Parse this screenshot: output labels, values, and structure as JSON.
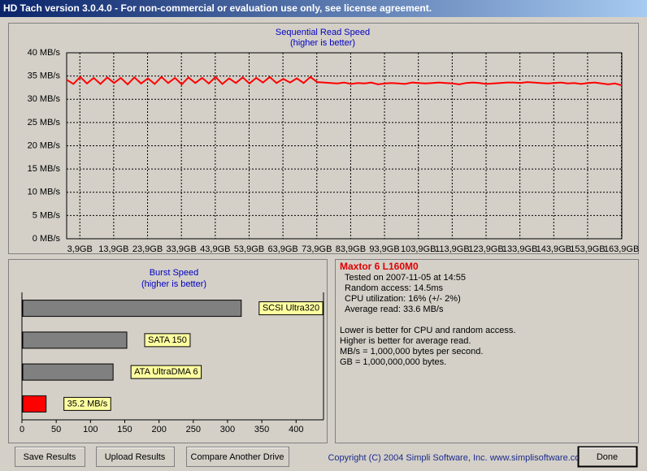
{
  "window": {
    "title": "HD Tach version 3.0.4.0  - For non-commercial or evaluation use only, see license agreement."
  },
  "charts": [
    {
      "type": "line",
      "title": "Sequential Read Speed",
      "subtitle": "(higher is better)",
      "x": [
        0,
        2,
        4,
        6,
        8,
        10,
        12,
        14,
        16,
        18,
        20,
        22,
        24,
        26,
        28,
        30,
        32,
        34,
        36,
        38,
        40,
        42,
        44,
        46,
        48,
        50,
        52,
        54,
        56,
        58,
        60,
        62,
        64,
        66,
        68,
        70,
        72,
        74,
        76,
        78,
        80,
        82,
        84,
        86,
        88,
        90,
        92,
        94,
        96,
        98,
        100,
        102,
        104,
        106,
        108,
        110,
        112,
        114,
        116,
        118,
        120,
        122,
        124,
        126,
        128,
        130,
        132,
        134,
        136,
        138,
        140,
        142,
        144,
        146,
        148,
        150,
        152,
        154,
        156,
        158,
        160,
        162,
        164
      ],
      "series": [
        {
          "color": "#ff0000",
          "values": [
            34.2,
            33.3,
            34.8,
            33.4,
            34.6,
            33.3,
            34.7,
            33.5,
            34.6,
            33.2,
            34.7,
            33.4,
            34.5,
            33.3,
            34.8,
            33.5,
            34.6,
            33.2,
            34.7,
            33.5,
            34.6,
            33.4,
            34.8,
            33.3,
            34.5,
            33.5,
            34.7,
            33.4,
            34.6,
            33.6,
            34.8,
            33.5,
            34.4,
            33.6,
            34.5,
            33.5,
            34.8,
            33.7,
            33.6,
            33.5,
            33.4,
            33.6,
            33.3,
            33.5,
            33.4,
            33.6,
            33.2,
            33.4,
            33.5,
            33.4,
            33.3,
            33.6,
            33.5,
            33.4,
            33.5,
            33.6,
            33.5,
            33.4,
            33.2,
            33.5,
            33.6,
            33.5,
            33.3,
            33.4,
            33.5,
            33.6,
            33.6,
            33.5,
            33.7,
            33.6,
            33.5,
            33.4,
            33.5,
            33.6,
            33.4,
            33.5,
            33.3,
            33.5,
            33.6,
            33.4,
            33.2,
            33.4,
            33.0
          ]
        }
      ],
      "xlim": [
        0,
        164
      ],
      "xticks": [
        {
          "value": 3.9,
          "label": "3,9GB"
        },
        {
          "value": 13.9,
          "label": "13,9GB"
        },
        {
          "value": 23.9,
          "label": "23,9GB"
        },
        {
          "value": 33.9,
          "label": "33,9GB"
        },
        {
          "value": 43.9,
          "label": "43,9GB"
        },
        {
          "value": 53.9,
          "label": "53,9GB"
        },
        {
          "value": 63.9,
          "label": "63,9GB"
        },
        {
          "value": 73.9,
          "label": "73,9GB"
        },
        {
          "value": 83.9,
          "label": "83,9GB"
        },
        {
          "value": 93.9,
          "label": "93,9GB"
        },
        {
          "value": 103.9,
          "label": "103,9GB"
        },
        {
          "value": 113.9,
          "label": "113,9GB"
        },
        {
          "value": 123.9,
          "label": "123,9GB"
        },
        {
          "value": 133.9,
          "label": "133,9GB"
        },
        {
          "value": 143.9,
          "label": "143,9GB"
        },
        {
          "value": 153.9,
          "label": "153,9GB"
        },
        {
          "value": 163.9,
          "label": "163,9GB"
        }
      ],
      "ylim": [
        0,
        40
      ],
      "yticks": [
        {
          "value": 0,
          "label": "0 MB/s"
        },
        {
          "value": 5,
          "label": "5 MB/s"
        },
        {
          "value": 10,
          "label": "10 MB/s"
        },
        {
          "value": 15,
          "label": "15 MB/s"
        },
        {
          "value": 20,
          "label": "20 MB/s"
        },
        {
          "value": 25,
          "label": "25 MB/s"
        },
        {
          "value": 30,
          "label": "30 MB/s"
        },
        {
          "value": 35,
          "label": "35 MB/s"
        },
        {
          "value": 40,
          "label": "40 MB/s"
        }
      ],
      "grid": true
    },
    {
      "type": "hbar",
      "title": "Burst Speed",
      "subtitle": "(higher is better)",
      "categories": [
        "SCSI Ultra320",
        "SATA 150",
        "ATA UltraDMA 6",
        null
      ],
      "values": [
        320,
        153,
        133,
        35.2
      ],
      "value_labels": [
        null,
        null,
        null,
        "35.2 MB/s"
      ],
      "colors": [
        "#808080",
        "#808080",
        "#808080",
        "#ff0000"
      ],
      "xlim": [
        0,
        440
      ],
      "xticks": [
        0,
        50,
        100,
        150,
        200,
        250,
        300,
        350,
        400
      ]
    }
  ],
  "info": {
    "drive": "Maxtor 6 L160M0",
    "lines": [
      "Tested on 2007-11-05 at 14:55",
      "Random access: 14.5ms",
      "CPU utilization: 16% (+/- 2%)",
      "Average read: 33.6 MB/s"
    ],
    "notes": [
      "Lower is better for CPU and random access.",
      "Higher is better for average read.",
      "MB/s = 1,000,000 bytes per second.",
      "GB = 1,000,000,000 bytes."
    ]
  },
  "buttons": [
    "Save Results",
    "Upload Results",
    "Compare Another Drive",
    "Done"
  ],
  "copyright": "Copyright (C) 2004 Simpli Software, Inc. www.simplisoftware.com"
}
